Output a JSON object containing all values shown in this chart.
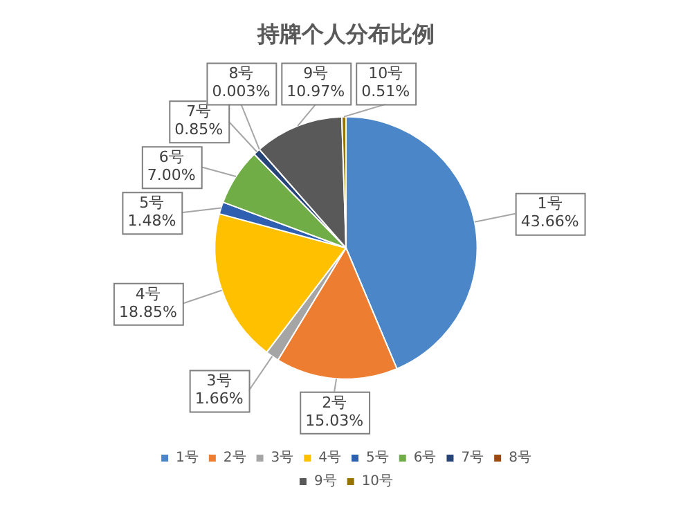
{
  "chart_data": {
    "type": "pie",
    "title": "持牌个人分布比例",
    "categories": [
      "1号",
      "2号",
      "3号",
      "4号",
      "5号",
      "6号",
      "7号",
      "8号",
      "9号",
      "10号"
    ],
    "values": [
      43.66,
      15.03,
      1.66,
      18.85,
      1.48,
      7.0,
      0.85,
      0.003,
      10.97,
      0.51
    ],
    "value_labels": [
      "43.66%",
      "15.03%",
      "1.66%",
      "18.85%",
      "1.48%",
      "7.00%",
      "0.85%",
      "0.003%",
      "10.97%",
      "0.51%"
    ],
    "colors": [
      "#4a86c8",
      "#ed7d31",
      "#a5a5a5",
      "#ffc000",
      "#2e5fb0",
      "#70ad47",
      "#264478",
      "#9e480e",
      "#595959",
      "#997300"
    ],
    "legend": "bottom"
  }
}
